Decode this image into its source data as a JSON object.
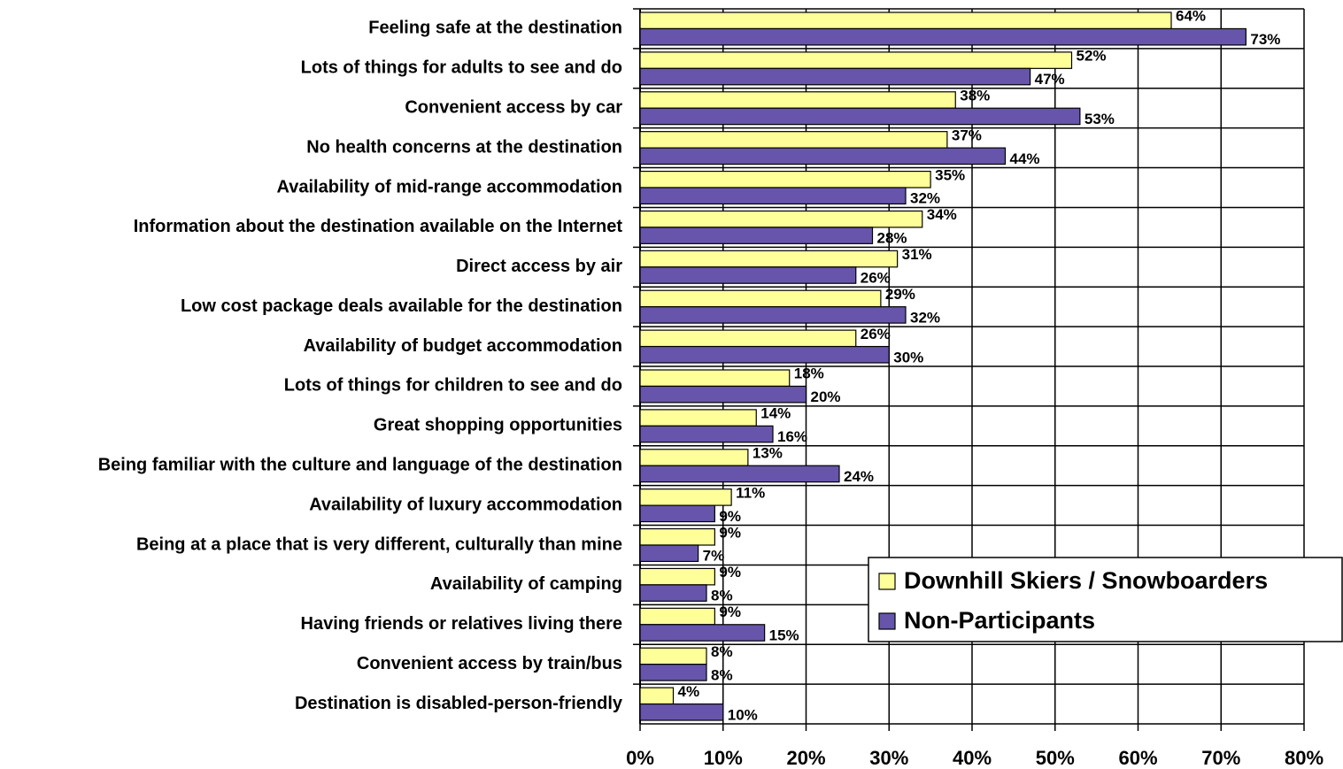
{
  "chart_data": {
    "type": "hbar",
    "categories": [
      "Feeling safe at the destination",
      "Lots of things for adults to see and do",
      "Convenient access by car",
      "No health concerns at the destination",
      "Availability of mid-range accommodation",
      "Information about the destination available on the Internet",
      "Direct access by air",
      "Low cost package deals available for the destination",
      "Availability of budget accommodation",
      "Lots of things for children to see and do",
      "Great shopping opportunities",
      "Being familiar with the culture and language of the destination",
      "Availability of luxury accommodation",
      "Being at a place that is very different, culturally than mine",
      "Availability of camping",
      "Having friends or relatives living there",
      "Convenient access by train/bus",
      "Destination is disabled-person-friendly"
    ],
    "series": [
      {
        "name": "Downhill Skiers / Snowboarders",
        "color": "#ffff99",
        "values": [
          64,
          52,
          38,
          37,
          35,
          34,
          31,
          29,
          26,
          18,
          14,
          13,
          11,
          9,
          9,
          9,
          8,
          4
        ],
        "value_labels": [
          "64%",
          "52%",
          "38%",
          "37%",
          "35%",
          "34%",
          "31%",
          "29%",
          "26%",
          "18%",
          "14%",
          "13%",
          "11%",
          "9%",
          "9%",
          "9%",
          "8%",
          "4%"
        ]
      },
      {
        "name": "Non-Participants",
        "color": "#6655aa",
        "values": [
          73,
          47,
          53,
          44,
          32,
          28,
          26,
          32,
          30,
          20,
          16,
          24,
          9,
          7,
          8,
          15,
          8,
          10
        ],
        "value_labels": [
          "73%",
          "47%",
          "53%",
          "44%",
          "32%",
          "28%",
          "26%",
          "32%",
          "30%",
          "20%",
          "16%",
          "24%",
          "9%",
          "7%",
          "8%",
          "15%",
          "8%",
          "10%"
        ]
      }
    ],
    "xlim": [
      0,
      80
    ],
    "xticks": [
      {
        "value": 0,
        "label": "0%"
      },
      {
        "value": 10,
        "label": "10%"
      },
      {
        "value": 20,
        "label": "20%"
      },
      {
        "value": 30,
        "label": "30%"
      },
      {
        "value": 40,
        "label": "40%"
      },
      {
        "value": 50,
        "label": "50%"
      },
      {
        "value": 60,
        "label": "60%"
      },
      {
        "value": 70,
        "label": "70%"
      },
      {
        "value": 80,
        "label": "80%"
      }
    ],
    "grid": true,
    "legend": "lower right"
  }
}
